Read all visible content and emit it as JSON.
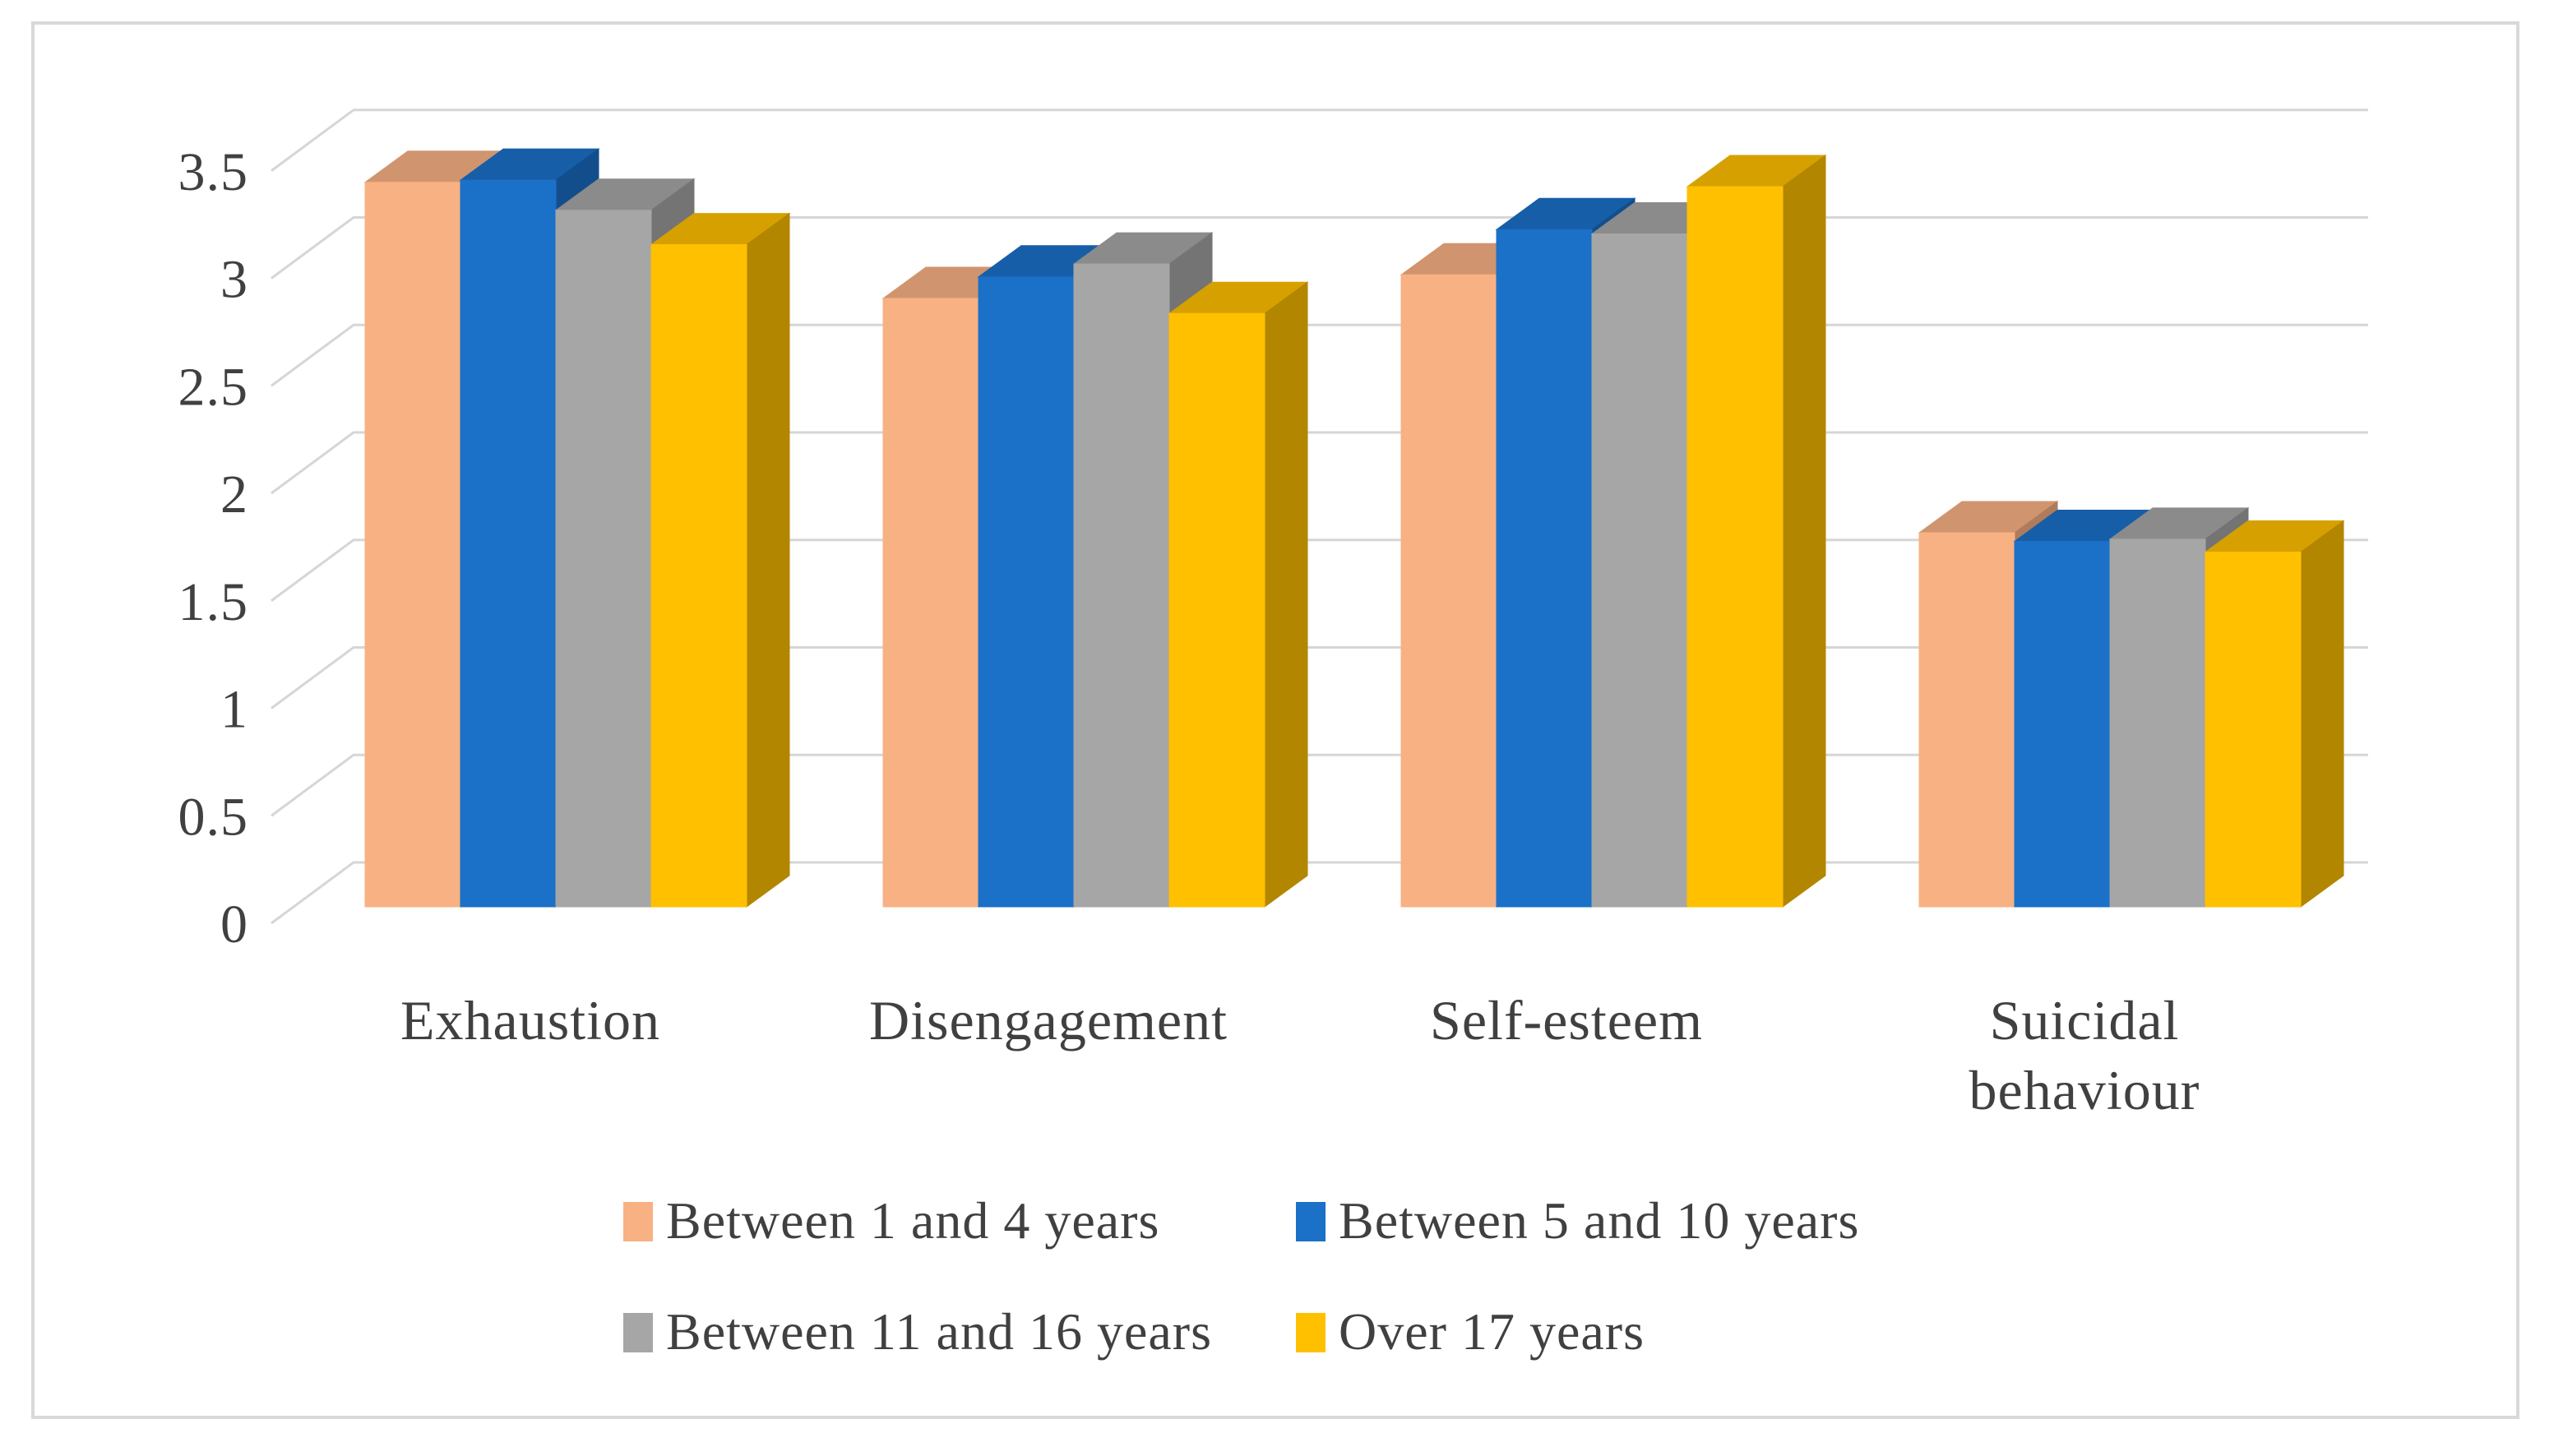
{
  "figure": {
    "background": "#FFFFFF",
    "border_color": "#D9D9D9",
    "text_color": "#404040",
    "gridline_color": "#D6D6D6"
  },
  "chart_data": {
    "type": "bar",
    "projection": "3d-clustered-column",
    "title": "",
    "xlabel": "",
    "ylabel": "",
    "categories": [
      "Exhaustion",
      "Disengagement",
      "Self-esteem",
      "Suicidal behaviour"
    ],
    "series": [
      {
        "name": "Between 1 and 4 years",
        "color": "#F8B183",
        "values": [
          3.37,
          2.83,
          2.94,
          1.74
        ]
      },
      {
        "name": "Between 5 and 10 years",
        "color": "#1B70C8",
        "values": [
          3.38,
          2.93,
          3.15,
          1.7
        ]
      },
      {
        "name": "Between 11 and 16 years",
        "color": "#A6A6A6",
        "values": [
          3.24,
          2.99,
          3.13,
          1.71
        ]
      },
      {
        "name": "Over 17 years",
        "color": "#FFC000",
        "values": [
          3.08,
          2.76,
          3.35,
          1.65
        ]
      }
    ],
    "ylim": [
      0,
      3.5
    ],
    "ytick_step": 0.5,
    "ytick_labels": [
      "0",
      "0.5",
      "1",
      "1.5",
      "2",
      "2.5",
      "3",
      "3.5"
    ],
    "grid": true,
    "legend_position": "bottom",
    "legend_rows": 2
  }
}
